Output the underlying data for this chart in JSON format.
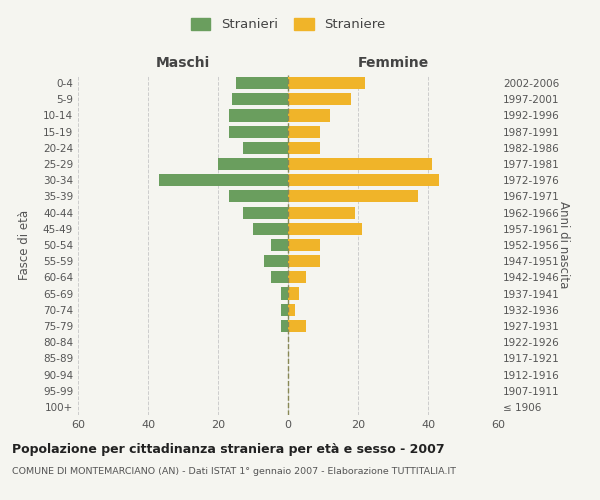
{
  "age_groups": [
    "100+",
    "95-99",
    "90-94",
    "85-89",
    "80-84",
    "75-79",
    "70-74",
    "65-69",
    "60-64",
    "55-59",
    "50-54",
    "45-49",
    "40-44",
    "35-39",
    "30-34",
    "25-29",
    "20-24",
    "15-19",
    "10-14",
    "5-9",
    "0-4"
  ],
  "birth_years": [
    "≤ 1906",
    "1907-1911",
    "1912-1916",
    "1917-1921",
    "1922-1926",
    "1927-1931",
    "1932-1936",
    "1937-1941",
    "1942-1946",
    "1947-1951",
    "1952-1956",
    "1957-1961",
    "1962-1966",
    "1967-1971",
    "1972-1976",
    "1977-1981",
    "1982-1986",
    "1987-1991",
    "1992-1996",
    "1997-2001",
    "2002-2006"
  ],
  "males": [
    0,
    0,
    0,
    0,
    0,
    2,
    2,
    2,
    5,
    7,
    5,
    10,
    13,
    17,
    37,
    20,
    13,
    17,
    17,
    16,
    15
  ],
  "females": [
    0,
    0,
    0,
    0,
    0,
    5,
    2,
    3,
    5,
    9,
    9,
    21,
    19,
    37,
    43,
    41,
    9,
    9,
    12,
    18,
    22
  ],
  "male_color": "#6a9e5e",
  "female_color": "#f0b429",
  "background_color": "#f5f5f0",
  "grid_color": "#cccccc",
  "title": "Popolazione per cittadinanza straniera per età e sesso - 2007",
  "subtitle": "COMUNE DI MONTEMARCIANO (AN) - Dati ISTAT 1° gennaio 2007 - Elaborazione TUTTITALIA.IT",
  "xlabel_left": "Maschi",
  "xlabel_right": "Femmine",
  "ylabel_left": "Fasce di età",
  "ylabel_right": "Anni di nascita",
  "legend_male": "Stranieri",
  "legend_female": "Straniere",
  "xlim": 60,
  "bar_height": 0.75
}
